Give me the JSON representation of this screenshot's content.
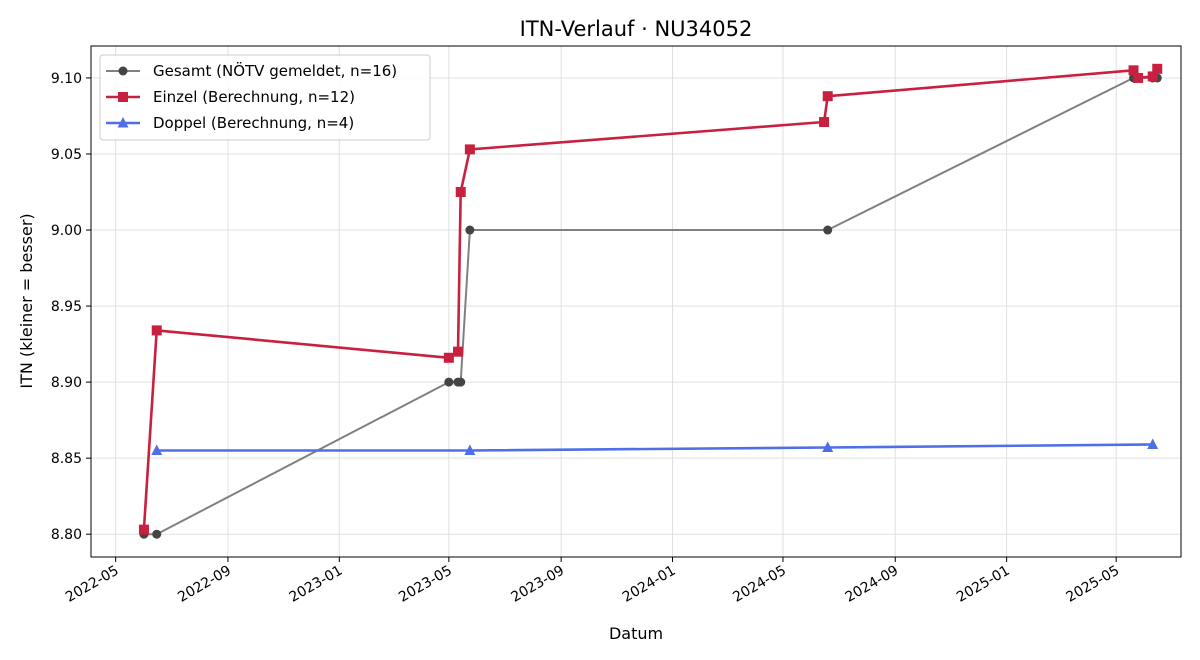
{
  "chart_data": {
    "type": "line",
    "title": "ITN-Verlauf · NU34052",
    "xlabel": "Datum",
    "ylabel": "ITN  (kleiner = besser)",
    "xlim": [
      "2022-04-04",
      "2025-07-11"
    ],
    "ylim": [
      8.785,
      9.121
    ],
    "x_ticks": [
      "2022-05",
      "2022-09",
      "2023-01",
      "2023-05",
      "2023-09",
      "2024-01",
      "2024-05",
      "2024-09",
      "2025-01",
      "2025-05"
    ],
    "y_ticks": [
      8.8,
      8.85,
      8.9,
      8.95,
      9.0,
      9.05,
      9.1
    ],
    "y_tick_labels": [
      "8.80",
      "8.85",
      "8.90",
      "8.95",
      "9.00",
      "9.05",
      "9.10"
    ],
    "grid": true,
    "legend_position": "top-left",
    "series": [
      {
        "name": "Gesamt (NÖTV gemeldet, n=16)",
        "color": "#808080",
        "marker": "circle",
        "points": [
          {
            "x": "2022-06-01",
            "y": 8.8
          },
          {
            "x": "2022-06-15",
            "y": 8.8
          },
          {
            "x": "2023-05-01",
            "y": 8.9
          },
          {
            "x": "2023-05-11",
            "y": 8.9
          },
          {
            "x": "2023-05-14",
            "y": 8.9
          },
          {
            "x": "2023-05-24",
            "y": 9.0
          },
          {
            "x": "2024-06-19",
            "y": 9.0
          },
          {
            "x": "2025-05-20",
            "y": 9.1
          },
          {
            "x": "2025-05-25",
            "y": 9.1
          },
          {
            "x": "2025-06-10",
            "y": 9.1
          },
          {
            "x": "2025-06-15",
            "y": 9.1
          }
        ]
      },
      {
        "name": "Einzel (Berechnung, n=12)",
        "color": "#c8203f",
        "marker": "square",
        "points": [
          {
            "x": "2022-06-01",
            "y": 8.803
          },
          {
            "x": "2022-06-15",
            "y": 8.934
          },
          {
            "x": "2023-05-01",
            "y": 8.916
          },
          {
            "x": "2023-05-11",
            "y": 8.92
          },
          {
            "x": "2023-05-14",
            "y": 9.025
          },
          {
            "x": "2023-05-24",
            "y": 9.053
          },
          {
            "x": "2024-06-15",
            "y": 9.071
          },
          {
            "x": "2024-06-19",
            "y": 9.088
          },
          {
            "x": "2025-05-20",
            "y": 9.105
          },
          {
            "x": "2025-05-25",
            "y": 9.1
          },
          {
            "x": "2025-06-10",
            "y": 9.101
          },
          {
            "x": "2025-06-15",
            "y": 9.106
          }
        ]
      },
      {
        "name": "Doppel (Berechnung, n=4)",
        "color": "#4f6fe8",
        "marker": "triangle",
        "points": [
          {
            "x": "2022-06-15",
            "y": 8.855
          },
          {
            "x": "2023-05-24",
            "y": 8.855
          },
          {
            "x": "2024-06-19",
            "y": 8.857
          },
          {
            "x": "2025-06-10",
            "y": 8.859
          }
        ]
      }
    ]
  }
}
